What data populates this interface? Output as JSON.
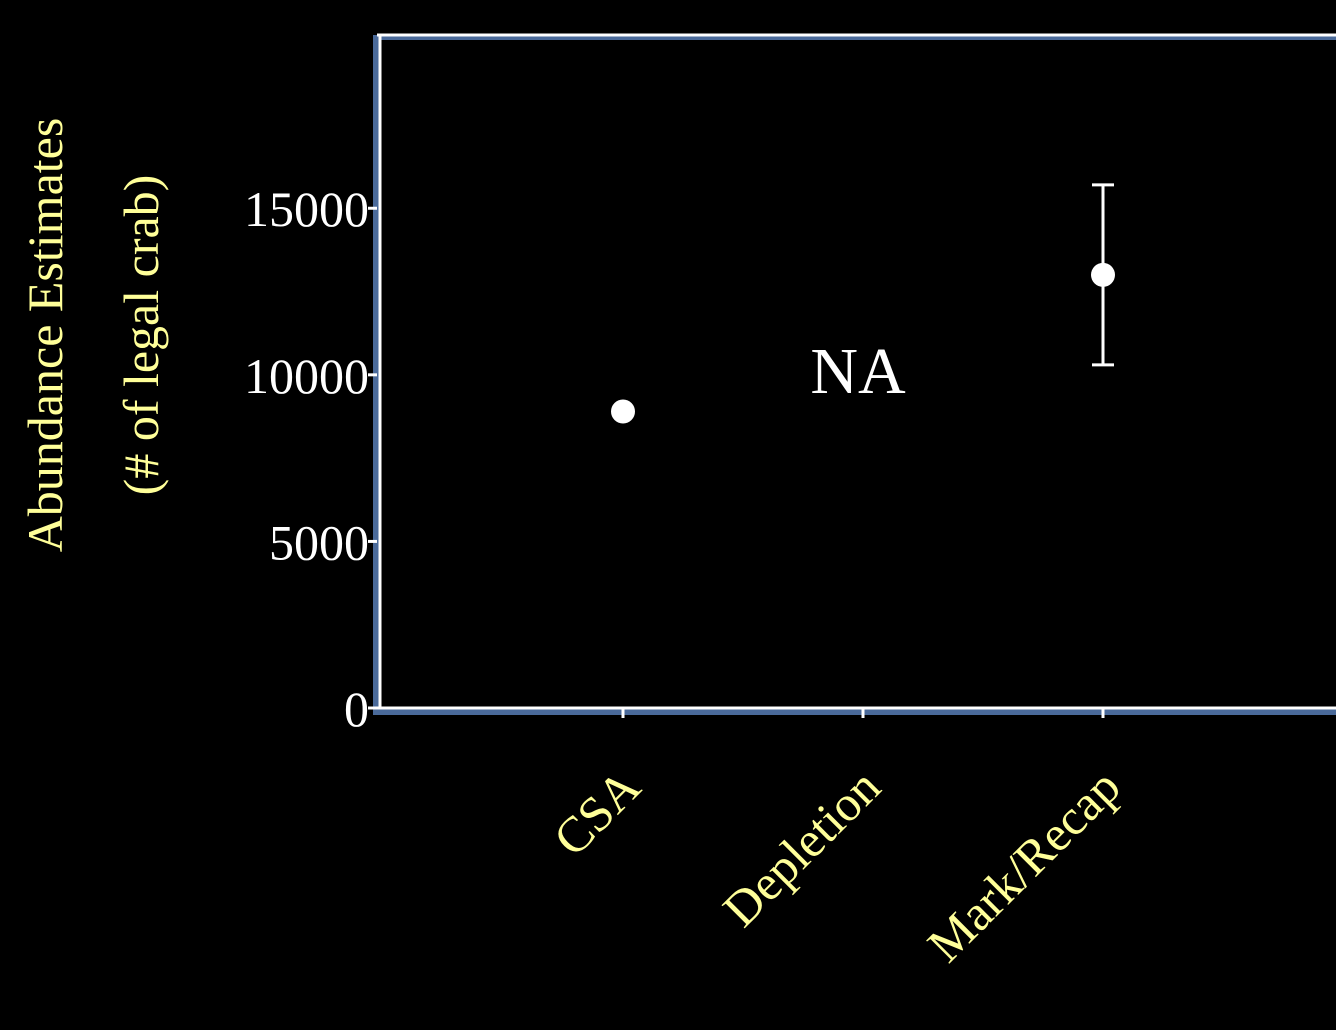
{
  "chart_data": {
    "type": "scatter",
    "ylabel_lines": [
      "Abundance Estimates",
      "(# of legal crab)"
    ],
    "categories": [
      "CSA",
      "Depletion",
      "Mark/Recap"
    ],
    "yticks": [
      "0",
      "5000",
      "10000",
      "15000"
    ],
    "ytick_values": [
      0,
      5000,
      10000,
      15000
    ],
    "ylim": [
      0,
      20200
    ],
    "points": [
      {
        "category": "CSA",
        "value": 8900,
        "has_error": false
      },
      {
        "category": "Depletion",
        "value": null,
        "label": "NA",
        "label_value": 10300
      },
      {
        "category": "Mark/Recap",
        "value": 13000,
        "has_error": true,
        "error_low": 10300,
        "error_high": 15700
      }
    ],
    "grid": false,
    "colors": {
      "background": "#000000",
      "axis_label": "#ffff99",
      "tick_label": "#ffffff",
      "axis_line": "#ffffff",
      "axis_shadow": "#4a6a9a",
      "marker": "#ffffff"
    }
  }
}
